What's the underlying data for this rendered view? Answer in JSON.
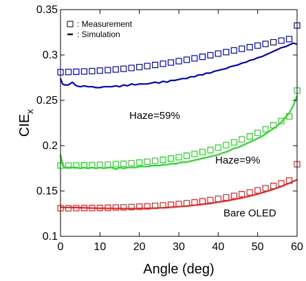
{
  "chart_data": {
    "type": "scatter",
    "xlabel": "Angle (deg)",
    "ylabel": {
      "main": "CIE",
      "sub": "x"
    },
    "xlim": [
      0,
      60
    ],
    "ylim": [
      0.1,
      0.35
    ],
    "xticks": [
      0,
      10,
      20,
      30,
      40,
      50,
      60
    ],
    "yticks": [
      0.1,
      0.15,
      0.2,
      0.25,
      0.3,
      0.35
    ],
    "xtick_labels": [
      "0",
      "10",
      "20",
      "30",
      "40",
      "50",
      "60"
    ],
    "ytick_labels": [
      "0.1",
      "0.15",
      "0.2",
      "0.25",
      "0.3",
      "0.35"
    ],
    "grid": false,
    "legend": {
      "position": "top-left",
      "entries": [
        {
          "marker": "square",
          "label": ": Measurement"
        },
        {
          "marker": "dash",
          "label": ": Simulation"
        }
      ]
    },
    "annotations": [
      {
        "text": "Haze=59%",
        "x": 27,
        "y": 0.256
      },
      {
        "text": "Haze=9%",
        "x": 37,
        "y": 0.184
      },
      {
        "text": "Bare OLED",
        "x": 39,
        "y": 0.121
      }
    ],
    "series": [
      {
        "color": "#0000cc",
        "measurement": {
          "x": [
            0,
            2,
            4,
            6,
            8,
            10,
            12,
            14,
            16,
            18,
            20,
            22,
            24,
            26,
            28,
            30,
            32,
            34,
            36,
            38,
            40,
            42,
            44,
            46,
            48,
            50,
            52,
            54,
            56,
            58,
            60
          ],
          "y": [
            0.281,
            0.2812,
            0.2815,
            0.2818,
            0.2822,
            0.2827,
            0.2833,
            0.284,
            0.2848,
            0.2857,
            0.2867,
            0.2878,
            0.289,
            0.2903,
            0.2917,
            0.2932,
            0.2947,
            0.2963,
            0.298,
            0.2997,
            0.3015,
            0.3032,
            0.305,
            0.3068,
            0.3086,
            0.3104,
            0.3122,
            0.314,
            0.3158,
            0.3175,
            0.3325
          ]
        },
        "simulation": {
          "x": [
            0,
            0.5,
            1,
            2,
            3,
            4,
            5,
            6,
            7,
            8,
            9,
            10,
            11,
            12,
            13,
            14,
            15,
            16,
            17,
            18,
            19,
            20,
            21,
            22,
            23,
            24,
            25,
            26,
            27,
            28,
            29,
            30,
            31,
            32,
            33,
            34,
            35,
            36,
            37,
            38,
            39,
            40,
            41,
            42,
            43,
            44,
            45,
            46,
            47,
            48,
            49,
            50,
            51,
            52,
            53,
            54,
            55,
            56,
            57,
            58,
            59,
            60
          ],
          "y": [
            0.274,
            0.268,
            0.267,
            0.267,
            0.27,
            0.266,
            0.265,
            0.266,
            0.265,
            0.265,
            0.264,
            0.264,
            0.265,
            0.265,
            0.265,
            0.266,
            0.265,
            0.267,
            0.266,
            0.268,
            0.267,
            0.268,
            0.268,
            0.268,
            0.269,
            0.27,
            0.269,
            0.271,
            0.27,
            0.272,
            0.272,
            0.273,
            0.274,
            0.274,
            0.276,
            0.276,
            0.278,
            0.278,
            0.28,
            0.28,
            0.282,
            0.283,
            0.284,
            0.285,
            0.287,
            0.288,
            0.289,
            0.291,
            0.292,
            0.294,
            0.295,
            0.297,
            0.298,
            0.3,
            0.302,
            0.304,
            0.306,
            0.308,
            0.309,
            0.311,
            0.313,
            0.312
          ]
        }
      },
      {
        "color": "#22dd22",
        "measurement": {
          "x": [
            0,
            2,
            4,
            6,
            8,
            10,
            12,
            14,
            16,
            18,
            20,
            22,
            24,
            26,
            28,
            30,
            32,
            34,
            36,
            38,
            40,
            42,
            44,
            46,
            48,
            50,
            52,
            54,
            56,
            58,
            60
          ],
          "y": [
            0.178,
            0.178,
            0.1782,
            0.1784,
            0.1786,
            0.1789,
            0.1792,
            0.1796,
            0.1801,
            0.1807,
            0.1814,
            0.1823,
            0.1833,
            0.1845,
            0.1858,
            0.1873,
            0.189,
            0.1909,
            0.193,
            0.1953,
            0.1978,
            0.2006,
            0.2036,
            0.2068,
            0.2103,
            0.2141,
            0.2182,
            0.2226,
            0.2273,
            0.2323,
            0.2608
          ]
        },
        "simulation": {
          "x": [
            0,
            0.5,
            1,
            2,
            3,
            4,
            5,
            6,
            7,
            8,
            9,
            10,
            11,
            12,
            13,
            14,
            15,
            16,
            17,
            18,
            19,
            20,
            21,
            22,
            23,
            24,
            25,
            26,
            27,
            28,
            29,
            30,
            31,
            32,
            33,
            34,
            35,
            36,
            37,
            38,
            39,
            40,
            41,
            42,
            43,
            44,
            45,
            46,
            47,
            48,
            49,
            50,
            51,
            52,
            53,
            54,
            55,
            56,
            57,
            58,
            59,
            60
          ],
          "y": [
            0.19,
            0.179,
            0.176,
            0.176,
            0.176,
            0.176,
            0.175,
            0.176,
            0.175,
            0.176,
            0.175,
            0.176,
            0.175,
            0.176,
            0.176,
            0.174,
            0.176,
            0.175,
            0.176,
            0.176,
            0.176,
            0.177,
            0.177,
            0.177,
            0.178,
            0.178,
            0.178,
            0.179,
            0.179,
            0.18,
            0.18,
            0.181,
            0.182,
            0.182,
            0.183,
            0.184,
            0.185,
            0.186,
            0.187,
            0.188,
            0.189,
            0.19,
            0.192,
            0.193,
            0.195,
            0.197,
            0.198,
            0.2,
            0.202,
            0.204,
            0.206,
            0.208,
            0.21,
            0.213,
            0.216,
            0.219,
            0.222,
            0.226,
            0.231,
            0.236,
            0.244,
            0.255
          ]
        }
      },
      {
        "color": "#ee2222",
        "measurement": {
          "x": [
            0,
            2,
            4,
            6,
            8,
            10,
            12,
            14,
            16,
            18,
            20,
            22,
            24,
            26,
            28,
            30,
            32,
            34,
            36,
            38,
            40,
            42,
            44,
            46,
            48,
            50,
            52,
            54,
            56,
            58,
            60
          ],
          "y": [
            0.131,
            0.131,
            0.1311,
            0.1312,
            0.1313,
            0.1314,
            0.1316,
            0.1318,
            0.132,
            0.1323,
            0.1327,
            0.1331,
            0.1336,
            0.1342,
            0.1349,
            0.1357,
            0.1366,
            0.1376,
            0.1387,
            0.14,
            0.1414,
            0.1429,
            0.1446,
            0.1465,
            0.1485,
            0.1507,
            0.1531,
            0.1557,
            0.1585,
            0.1615,
            0.1795
          ]
        },
        "simulation": {
          "x": [
            0,
            2,
            4,
            6,
            8,
            10,
            12,
            14,
            16,
            18,
            20,
            22,
            24,
            26,
            28,
            30,
            32,
            34,
            36,
            38,
            40,
            42,
            44,
            46,
            48,
            50,
            52,
            54,
            56,
            58,
            60
          ],
          "y": [
            0.132,
            0.132,
            0.1318,
            0.1315,
            0.1312,
            0.131,
            0.1308,
            0.1307,
            0.1306,
            0.1306,
            0.1307,
            0.1309,
            0.1312,
            0.1316,
            0.1321,
            0.1327,
            0.1334,
            0.1343,
            0.1353,
            0.1364,
            0.1377,
            0.1391,
            0.1407,
            0.1425,
            0.1445,
            0.1467,
            0.1492,
            0.152,
            0.1551,
            0.1586,
            0.1625
          ]
        }
      }
    ]
  }
}
